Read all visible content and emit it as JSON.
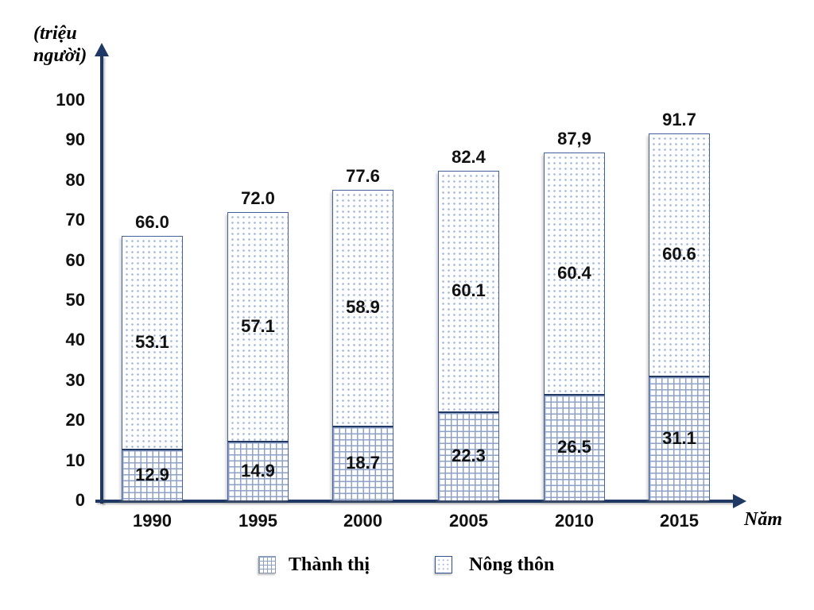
{
  "chart_data": {
    "type": "bar",
    "stacked": true,
    "unit_label_line1": "(triệu",
    "unit_label_line2": "người)",
    "xlabel": "Năm",
    "categories": [
      "1990",
      "1995",
      "2000",
      "2005",
      "2010",
      "2015"
    ],
    "series": [
      {
        "name": "Thành thị",
        "pattern": "grid",
        "values": [
          12.9,
          14.9,
          18.7,
          22.3,
          26.5,
          31.1
        ],
        "labels": [
          "12.9",
          "14.9",
          "18.7",
          "22.3",
          "26.5",
          "31.1"
        ]
      },
      {
        "name": "Nông thôn",
        "pattern": "dots",
        "values": [
          53.1,
          57.1,
          58.9,
          60.1,
          60.4,
          60.6
        ],
        "labels": [
          "53.1",
          "57.1",
          "58.9",
          "60.1",
          "60.4",
          "60.6"
        ]
      }
    ],
    "totals": [
      "66.0",
      "72.0",
      "77.6",
      "82.4",
      "87,9",
      "91.7"
    ],
    "total_values": [
      66.0,
      72.0,
      77.6,
      82.4,
      87.9,
      91.7
    ],
    "y_ticks": [
      0,
      10,
      20,
      30,
      40,
      50,
      60,
      70,
      80,
      90,
      100
    ],
    "ylim": [
      0,
      100
    ],
    "grid": false,
    "legend_position": "bottom"
  },
  "colors": {
    "axis": "#1f3864",
    "segment_border": "#44619d",
    "pattern_blue": "#a5bade",
    "grid_line_blue": "#8da2c6",
    "text": "#111111"
  }
}
